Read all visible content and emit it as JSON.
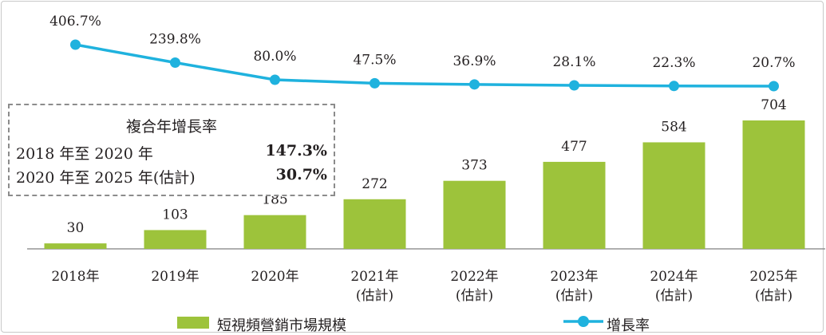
{
  "chart_data": {
    "type": "bar",
    "categories": [
      "2018年",
      "2019年",
      "2020年",
      "2021年\n(估計)",
      "2022年\n(估計)",
      "2023年\n(估計)",
      "2024年\n(估計)",
      "2025年\n(估計)"
    ],
    "series": [
      {
        "name": "短視頻營銷市場規模",
        "type": "bar",
        "values": [
          30,
          103,
          185,
          272,
          373,
          477,
          584,
          704
        ],
        "labels": [
          "30",
          "103",
          "185",
          "272",
          "373",
          "477",
          "584",
          "704"
        ]
      },
      {
        "name": "增長率",
        "type": "line",
        "values": [
          406.7,
          239.8,
          80.0,
          47.5,
          36.9,
          28.1,
          22.3,
          20.7
        ],
        "labels": [
          "406.7%",
          "239.8%",
          "80.0%",
          "47.5%",
          "36.9%",
          "28.1%",
          "22.3%",
          "20.7%"
        ]
      }
    ],
    "colors": {
      "bar": "#9dc33b",
      "line": "#1fb2de",
      "axis": "#7f7f7f"
    },
    "title": "",
    "xlabel": "",
    "ylabel": "",
    "grid": false,
    "legend": "bottom"
  },
  "cagr_box": {
    "title": "複合年增長率",
    "rows": [
      {
        "label": "2018 年至 2020 年",
        "value": "147.3%"
      },
      {
        "label": "2020 年至 2025 年(估計)",
        "value": "30.7%"
      }
    ]
  },
  "legend": {
    "bar_label": "短視頻營銷市場規模",
    "line_label": "增長率"
  }
}
